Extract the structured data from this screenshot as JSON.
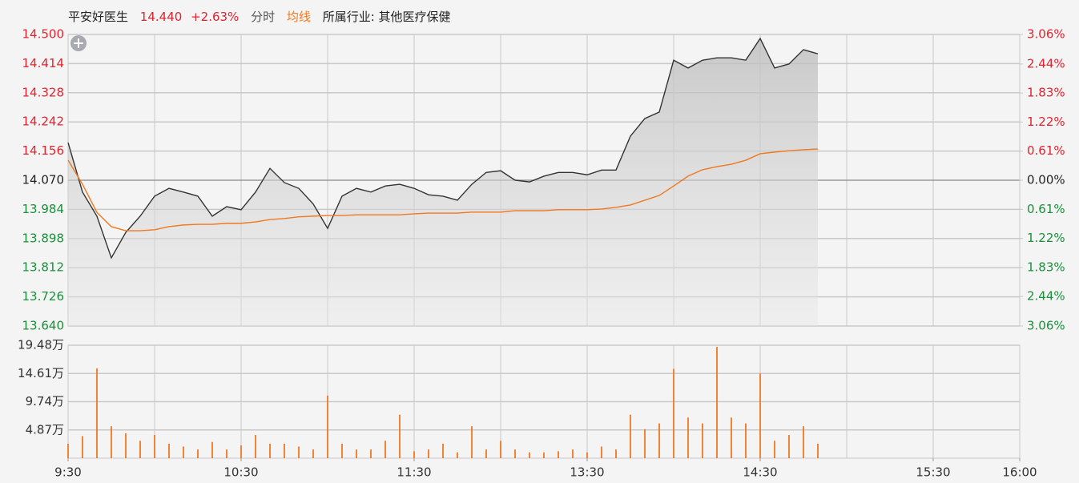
{
  "header": {
    "name": "平安好医生",
    "price": "14.440",
    "change": "+2.63%",
    "mode": "分时",
    "industry": "所属行业: 其他医疗保健"
  },
  "chart_data": [
    {
      "type": "line",
      "x": [
        0,
        5,
        10,
        15,
        20,
        25,
        30,
        35,
        40,
        45,
        50,
        55,
        60,
        65,
        70,
        75,
        80,
        85,
        90,
        95,
        100,
        105,
        110,
        115,
        120,
        125,
        130,
        135,
        140,
        145,
        150,
        155,
        160,
        165,
        170,
        175,
        180,
        185,
        190,
        195,
        200,
        205,
        210,
        215,
        220,
        225,
        230,
        235,
        240,
        245,
        250,
        255,
        260
      ],
      "xlim": [
        0,
        330
      ],
      "ylim": [
        13.64,
        14.5
      ],
      "yticks": [
        {
          "value": 14.5,
          "label": "14.500"
        },
        14.414,
        14.328,
        14.242,
        14.156,
        {
          "value": 14.07,
          "label": "14.070"
        },
        13.984,
        13.898,
        13.812,
        13.726,
        {
          "value": 13.64,
          "label": "13.640"
        }
      ],
      "y2lim": [
        -3.06,
        3.06
      ],
      "y2ticks": [
        {
          "value": 3.06,
          "label": "3.06%"
        },
        {
          "value": 2.44,
          "label": "2.44%"
        },
        {
          "value": 1.83,
          "label": "1.83%"
        },
        {
          "value": 1.22,
          "label": "1.22%"
        },
        {
          "value": 0.61,
          "label": "0.61%"
        },
        {
          "value": 0,
          "label": "0.00%"
        },
        {
          "value": -0.61,
          "label": "0.61%"
        },
        {
          "value": -1.22,
          "label": "1.22%"
        },
        {
          "value": -1.83,
          "label": "1.83%"
        },
        {
          "value": -2.44,
          "label": "2.44%"
        },
        {
          "value": -3.06,
          "label": "3.06%"
        }
      ],
      "grid": true,
      "fill": true,
      "up_color": "#e0232e",
      "down_color": "#1a8f3a",
      "series": [
        {
          "color": "#333333",
          "values": [
            14.181,
            14.035,
            13.964,
            13.841,
            13.916,
            13.964,
            14.023,
            14.046,
            14.035,
            14.023,
            13.964,
            13.992,
            13.983,
            14.035,
            14.105,
            14.063,
            14.046,
            14.0,
            13.928,
            14.023,
            14.046,
            14.035,
            14.053,
            14.058,
            14.046,
            14.027,
            14.023,
            14.011,
            14.058,
            14.093,
            14.098,
            14.07,
            14.065,
            14.082,
            14.093,
            14.093,
            14.086,
            14.1,
            14.1,
            14.2,
            14.252,
            14.271,
            14.424,
            14.401,
            14.424,
            14.431,
            14.431,
            14.424,
            14.488,
            14.401,
            14.413,
            14.455,
            14.443
          ]
        },
        {
          "name": "均线",
          "color": "#f07820",
          "values": [
            14.129,
            14.058,
            13.975,
            13.933,
            13.921,
            13.921,
            13.924,
            13.933,
            13.938,
            13.94,
            13.94,
            13.943,
            13.943,
            13.947,
            13.954,
            13.957,
            13.962,
            13.964,
            13.966,
            13.966,
            13.968,
            13.968,
            13.968,
            13.968,
            13.971,
            13.973,
            13.973,
            13.973,
            13.976,
            13.976,
            13.976,
            13.98,
            13.98,
            13.98,
            13.983,
            13.983,
            13.983,
            13.985,
            13.99,
            13.997,
            14.011,
            14.025,
            14.053,
            14.082,
            14.101,
            14.11,
            14.117,
            14.129,
            14.148,
            14.153,
            14.157,
            14.16,
            14.162
          ]
        }
      ]
    },
    {
      "type": "bar",
      "x": [
        0,
        5,
        10,
        15,
        20,
        25,
        30,
        35,
        40,
        45,
        50,
        55,
        60,
        65,
        70,
        75,
        80,
        85,
        90,
        95,
        100,
        105,
        110,
        115,
        120,
        125,
        130,
        135,
        140,
        145,
        150,
        155,
        160,
        165,
        170,
        175,
        180,
        185,
        190,
        195,
        200,
        205,
        210,
        215,
        220,
        225,
        230,
        235,
        240,
        245,
        250,
        255,
        260
      ],
      "xlim": [
        0,
        330
      ],
      "xticks": [
        {
          "value": 0,
          "label": "9:30"
        },
        {
          "value": 60,
          "label": "10:30"
        },
        {
          "value": 120,
          "label": "11:30"
        },
        {
          "value": 180,
          "label": "13:30"
        },
        {
          "value": 240,
          "label": "14:30"
        },
        {
          "value": 300,
          "label": "15:30"
        },
        {
          "value": 330,
          "label": "16:00"
        }
      ],
      "ylim": [
        0,
        19.48
      ],
      "yticks": [
        {
          "value": 19.48,
          "label": "19.48万"
        },
        {
          "value": 14.61,
          "label": "14.61万"
        },
        {
          "value": 9.74,
          "label": "9.74万"
        },
        {
          "value": 4.87,
          "label": "4.87万"
        }
      ],
      "grid": true,
      "color": "#f07820",
      "values": [
        2.5,
        3.8,
        15.5,
        5.5,
        4.3,
        3,
        4,
        2.5,
        2,
        1.5,
        2.8,
        1.5,
        2.2,
        4,
        2.5,
        2.5,
        2,
        1.5,
        10.8,
        2.5,
        1.5,
        1.5,
        3,
        7.5,
        1.2,
        1.5,
        2.5,
        1,
        5.5,
        1.5,
        3,
        1.5,
        1,
        1,
        1.2,
        1.5,
        1,
        2,
        1.5,
        7.5,
        5,
        6,
        15.4,
        7,
        6,
        19.2,
        7,
        6,
        14.6,
        3,
        4,
        5.5,
        2.5
      ]
    }
  ]
}
